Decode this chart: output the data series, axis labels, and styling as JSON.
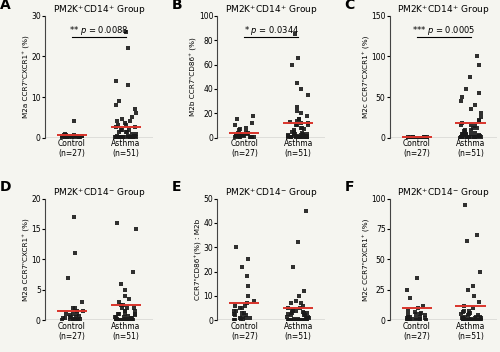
{
  "panels": [
    {
      "label": "A",
      "title_line1": "PM2K",
      "title_sup1": "+",
      "title_line2": "CD14",
      "title_sup2": "+",
      "title_end": " Group",
      "pvalue": "p = 0.0088",
      "stars": "**",
      "ylabel": "M2a CCR7ⁿCXCR1⁺ (%)",
      "ylim": [
        0,
        30
      ],
      "yticks": [
        0,
        10,
        20,
        30
      ],
      "control_data": [
        0.2,
        0.5,
        0.3,
        4.0,
        0.1,
        0.8,
        0.4,
        0.2,
        0.6,
        0.3,
        0.1,
        0.5,
        0.2,
        0.7,
        0.3,
        0.2,
        0.4,
        0.1,
        0.5,
        0.3,
        0.2,
        0.6,
        0.1,
        0.4,
        0.3,
        0.2,
        0.5
      ],
      "asthma_data": [
        26,
        22,
        14,
        13,
        9,
        8,
        7,
        6,
        5,
        4.5,
        4,
        4,
        3.5,
        3,
        3,
        2.5,
        2.5,
        2,
        2,
        2,
        1.5,
        1.5,
        1.5,
        1,
        1,
        0.5,
        0.5,
        0.5,
        0.3,
        0.3,
        0.2,
        0.2,
        0.1,
        0.1,
        0.1,
        0.1,
        0.1,
        0.1,
        0.1,
        0.1,
        0.1,
        0.1,
        0.1,
        0.1,
        0.1,
        0.1,
        0.1,
        0.1,
        0.1,
        0.1,
        0.1
      ],
      "control_mean": 0.6,
      "asthma_mean": 2.5,
      "has_sig": true
    },
    {
      "label": "B",
      "title_line1": "PM2K",
      "title_sup1": "+",
      "title_line2": "CD14",
      "title_sup2": "+",
      "title_end": " Group",
      "pvalue": "p = 0.0344",
      "stars": "*",
      "ylabel": "M2b CCR7ⁿCD86⁺ (%)",
      "ylim": [
        0,
        100
      ],
      "yticks": [
        0,
        20,
        40,
        60,
        80,
        100
      ],
      "control_data": [
        18,
        15,
        12,
        10,
        8,
        7,
        6,
        5,
        4,
        4,
        3,
        3,
        2,
        2,
        2,
        1.5,
        1.5,
        1,
        1,
        1,
        0.5,
        0.5,
        0.5,
        0.3,
        0.3,
        0.2,
        0.2
      ],
      "asthma_data": [
        85,
        65,
        60,
        45,
        40,
        35,
        25,
        22,
        20,
        18,
        15,
        15,
        14,
        13,
        12,
        12,
        10,
        10,
        10,
        8,
        8,
        7,
        6,
        5,
        5,
        4,
        4,
        3,
        3,
        3,
        2,
        2,
        2,
        1,
        1,
        1,
        1,
        1,
        0.5,
        0.5,
        0.5,
        0.5,
        0.5,
        0.3,
        0.3,
        0.2,
        0.2,
        0.1,
        0.1,
        0.1,
        0.1
      ],
      "control_mean": 3.5,
      "asthma_mean": 12,
      "has_sig": true
    },
    {
      "label": "C",
      "title_line1": "PM2K",
      "title_sup1": "+",
      "title_line2": "CD14",
      "title_sup2": "+",
      "title_end": " Group",
      "pvalue": "p = 0.0005",
      "stars": "***",
      "ylabel": "M2c CCR7ⁿCXCR1⁺ (%)",
      "ylim": [
        0,
        150
      ],
      "yticks": [
        0,
        50,
        100,
        150
      ],
      "control_data": [
        1.0,
        0.5,
        0.5,
        0.3,
        0.3,
        0.2,
        0.2,
        0.2,
        0.1,
        0.1,
        0.1,
        0.1,
        0.1,
        0.1,
        0.1,
        0.1,
        0.1,
        0.1,
        0.1,
        0.1,
        0.1,
        0.1,
        0.1,
        0.1,
        0.1,
        0.1,
        0.1
      ],
      "asthma_data": [
        100,
        90,
        75,
        60,
        55,
        50,
        45,
        40,
        35,
        30,
        25,
        22,
        20,
        18,
        16,
        15,
        14,
        12,
        12,
        10,
        10,
        8,
        7,
        6,
        5,
        5,
        4,
        4,
        3,
        3,
        2,
        2,
        2,
        1,
        1,
        1,
        0.5,
        0.5,
        0.5,
        0.5,
        0.3,
        0.3,
        0.2,
        0.2,
        0.1,
        0.1,
        0.1,
        0.1,
        0.1,
        0.1,
        0.1
      ],
      "control_mean": 0.2,
      "asthma_mean": 18,
      "has_sig": true
    },
    {
      "label": "D",
      "title_line1": "PM2K",
      "title_sup1": "+",
      "title_line2": "CD14",
      "title_sup2": "−",
      "title_end": " Group",
      "pvalue": null,
      "stars": null,
      "ylabel": "M2a CCR7ⁿCXCR1⁺ (%)",
      "ylim": [
        0,
        20
      ],
      "yticks": [
        0,
        5,
        10,
        15,
        20
      ],
      "control_data": [
        17,
        11,
        7,
        3,
        2,
        2,
        1.5,
        1.5,
        1,
        1,
        1,
        0.8,
        0.7,
        0.5,
        0.5,
        0.5,
        0.3,
        0.3,
        0.2,
        0.2,
        0.2,
        0.1,
        0.1,
        0.1,
        0.1,
        0.1,
        0.1
      ],
      "asthma_data": [
        16,
        15,
        8,
        6,
        5,
        4,
        3.5,
        3,
        2.5,
        2.5,
        2,
        2,
        2,
        1.5,
        1.5,
        1.5,
        1,
        1,
        1,
        1,
        0.8,
        0.7,
        0.5,
        0.5,
        0.5,
        0.3,
        0.3,
        0.2,
        0.2,
        0.2,
        0.1,
        0.1,
        0.1,
        0.1,
        0.1,
        0.1,
        0.1,
        0.1,
        0.1,
        0.1,
        0.1,
        0.1,
        0.1,
        0.1,
        0.1,
        0.1,
        0.1,
        0.1,
        0.1,
        0.1,
        0.1
      ],
      "control_mean": 1.5,
      "asthma_mean": 2.5,
      "has_sig": false
    },
    {
      "label": "E",
      "title_line1": "PM2K",
      "title_sup1": "+",
      "title_line2": "CD14",
      "title_sup2": "−",
      "title_end": " Group",
      "pvalue": null,
      "stars": null,
      "ylabel": "CCR7ⁿCD86⁺(%) : M2b",
      "ylim": [
        0,
        50
      ],
      "yticks": [
        0,
        10,
        20,
        30,
        40,
        50
      ],
      "control_data": [
        30,
        25,
        22,
        18,
        14,
        10,
        8,
        7,
        6,
        6,
        5,
        5,
        4,
        4,
        3,
        3,
        2.5,
        2,
        2,
        1.5,
        1,
        1,
        0.8,
        0.5,
        0.5,
        0.3,
        0.3
      ],
      "asthma_data": [
        45,
        32,
        22,
        12,
        10,
        8,
        7,
        7,
        6,
        5,
        5,
        4,
        4,
        4,
        3.5,
        3,
        3,
        3,
        2.5,
        2,
        2,
        2,
        1.5,
        1.5,
        1,
        1,
        1,
        0.8,
        0.5,
        0.5,
        0.5,
        0.3,
        0.3,
        0.2,
        0.2,
        0.1,
        0.1,
        0.1,
        0.1,
        0.1,
        0.1,
        0.1,
        0.1,
        0.1,
        0.1,
        0.1,
        0.1,
        0.1,
        0.1,
        0.1,
        0.1
      ],
      "control_mean": 7,
      "asthma_mean": 5,
      "has_sig": false
    },
    {
      "label": "F",
      "title_line1": "PM2K",
      "title_sup1": "+",
      "title_line2": "CD14",
      "title_sup2": "−",
      "title_end": " Group",
      "pvalue": null,
      "stars": null,
      "ylabel": "M2c CCR7ⁿCXCR1⁺ (%)",
      "ylim": [
        0,
        100
      ],
      "yticks": [
        0,
        25,
        50,
        75,
        100
      ],
      "control_data": [
        35,
        25,
        18,
        12,
        10,
        8,
        7,
        6,
        5,
        5,
        4,
        4,
        3,
        3,
        2.5,
        2,
        2,
        1.5,
        1,
        1,
        0.8,
        0.5,
        0.5,
        0.3,
        0.3,
        0.2,
        0.2
      ],
      "asthma_data": [
        95,
        70,
        65,
        40,
        28,
        25,
        20,
        15,
        12,
        10,
        8,
        8,
        7,
        6,
        5,
        5,
        4,
        4,
        3,
        3,
        2.5,
        2,
        2,
        1.5,
        1.5,
        1,
        1,
        1,
        0.5,
        0.5,
        0.5,
        0.3,
        0.3,
        0.2,
        0.2,
        0.2,
        0.1,
        0.1,
        0.1,
        0.1,
        0.1,
        0.1,
        0.1,
        0.1,
        0.1,
        0.1,
        0.1,
        0.1,
        0.1,
        0.1,
        0.1
      ],
      "control_mean": 10,
      "asthma_mean": 12,
      "has_sig": false
    }
  ],
  "dot_color": "#1a1a1a",
  "mean_line_color": "#d9342b",
  "baseline_color": "#444444",
  "dot_size": 7,
  "dot_alpha": 0.9,
  "xlabel_control": "Control\n(n=27)",
  "xlabel_asthma": "Asthma\n(n=51)",
  "jitter_seed": 42,
  "font_size_title": 6.5,
  "font_size_label": 5.2,
  "font_size_tick": 5.5,
  "font_size_panel_label": 10,
  "font_size_sig": 6.0,
  "bg_color": "#f5f5f0"
}
